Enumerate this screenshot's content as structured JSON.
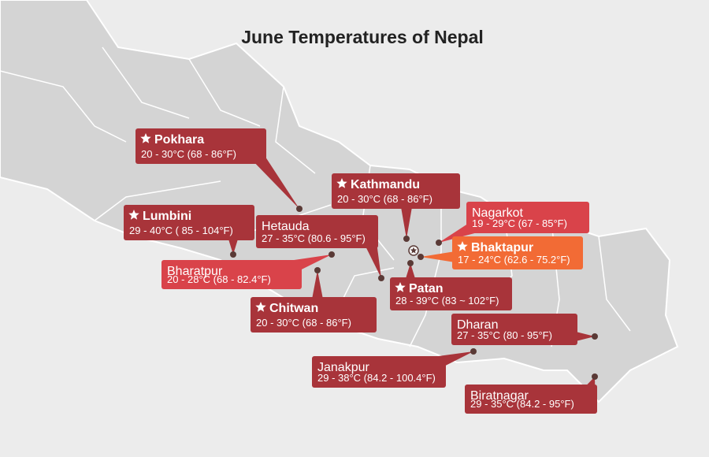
{
  "title": "June Temperatures of Nepal",
  "cities": [
    {
      "name": "Pokhara",
      "temperature": "20 - 30°C (68 - 86°F)"
    },
    {
      "name": "Lumbini",
      "temperature": "29 - 40°C ( 85 - 104°F)"
    },
    {
      "name": "Hetauda",
      "temperature": "27 - 35°C (80.6 - 95°F)"
    },
    {
      "name": "Bharatpur",
      "temperature": "20 - 28°C (68 - 82.4°F)"
    },
    {
      "name": "Chitwan",
      "temperature": "20 - 30°C (68 - 86°F)"
    },
    {
      "name": "Kathmandu",
      "temperature": "20 - 30°C (68 - 86°F)"
    },
    {
      "name": "Nagarkot",
      "temperature": "19 - 29°C (67 - 85°F)"
    },
    {
      "name": "Bhaktapur",
      "temperature": "17 - 24°C (62.6 - 75.2°F)"
    },
    {
      "name": "Patan",
      "temperature": "28 - 39°C (83 ~ 102°F)"
    },
    {
      "name": "Dharan",
      "temperature": "27 - 35°C (80 - 95°F)"
    },
    {
      "name": "Janakpur",
      "temperature": "29 - 38°C (84.2 - 100.4°F)"
    },
    {
      "name": "Biratnagar",
      "temperature": "29 - 35°C (84.2 - 95°F)"
    }
  ]
}
